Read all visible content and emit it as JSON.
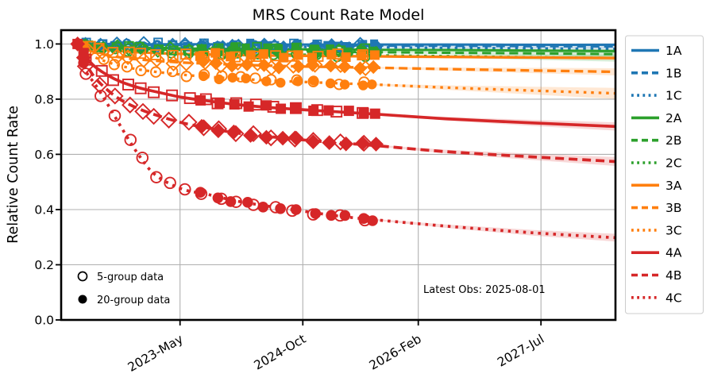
{
  "chart_data": {
    "type": "line",
    "title": "MRS Count Rate Model",
    "xlabel": "",
    "ylabel": "Relative Count Rate",
    "annotation": "Latest Obs: 2025-08-01",
    "latest_obs_date": "2025-08-01",
    "xlim": [
      2021.96,
      2028.36
    ],
    "ylim": [
      0,
      1.05
    ],
    "yticks": [
      "0.0",
      "0.2",
      "0.4",
      "0.6",
      "0.8",
      "1.0"
    ],
    "ytick_values": [
      0.0,
      0.2,
      0.4,
      0.6,
      0.8,
      1.0
    ],
    "xticks": [
      {
        "t": 2023.333,
        "label": "2023-May"
      },
      {
        "t": 2024.75,
        "label": "2024-Oct"
      },
      {
        "t": 2026.083,
        "label": "2026-Feb"
      },
      {
        "t": 2027.5,
        "label": "2027-Jul"
      }
    ],
    "grid": true,
    "grid_color": "#b0b0b0",
    "legend_position": "right",
    "marker_legend": [
      {
        "label": "5-group data",
        "filled": false
      },
      {
        "label": "20-group data",
        "filled": true
      }
    ],
    "t_points": [
      2022.15,
      2022.25,
      2022.35,
      2022.5,
      2022.65,
      2022.85,
      2023.05,
      2023.35,
      2023.65,
      2024.0,
      2024.4,
      2024.8,
      2025.2,
      2025.58,
      2026.4,
      2027.4,
      2028.36
    ],
    "data_end_index": 13,
    "latest_obs_t": 2025.58,
    "series": [
      {
        "name": "1A",
        "color": "#1f77b4",
        "dash": "solid",
        "marker": "square",
        "band": 0.004,
        "values": [
          1.0,
          1.0,
          1.0,
          1.0,
          0.999,
          0.999,
          0.999,
          0.999,
          0.999,
          0.998,
          0.998,
          0.998,
          0.998,
          0.998,
          0.998,
          0.997,
          0.997
        ]
      },
      {
        "name": "1B",
        "color": "#1f77b4",
        "dash": "dashed",
        "marker": "diamond",
        "band": 0.005,
        "values": [
          1.0,
          0.999,
          0.999,
          0.998,
          0.998,
          0.997,
          0.997,
          0.996,
          0.996,
          0.995,
          0.995,
          0.994,
          0.994,
          0.994,
          0.993,
          0.992,
          0.991
        ]
      },
      {
        "name": "1C",
        "color": "#1f77b4",
        "dash": "dotted",
        "marker": "circle",
        "band": 0.006,
        "values": [
          1.0,
          0.998,
          0.997,
          0.996,
          0.995,
          0.994,
          0.993,
          0.992,
          0.991,
          0.99,
          0.989,
          0.989,
          0.988,
          0.988,
          0.986,
          0.984,
          0.982
        ]
      },
      {
        "name": "2A",
        "color": "#2ca02c",
        "dash": "solid",
        "marker": "square",
        "band": 0.008,
        "values": [
          1.0,
          0.996,
          0.993,
          0.991,
          0.989,
          0.987,
          0.986,
          0.984,
          0.983,
          0.982,
          0.981,
          0.98,
          0.98,
          0.979,
          0.978,
          0.976,
          0.974
        ]
      },
      {
        "name": "2B",
        "color": "#2ca02c",
        "dash": "dashed",
        "marker": "diamond",
        "band": 0.011,
        "values": [
          1.0,
          0.994,
          0.99,
          0.987,
          0.984,
          0.982,
          0.98,
          0.978,
          0.976,
          0.974,
          0.973,
          0.972,
          0.971,
          0.97,
          0.968,
          0.966,
          0.963
        ]
      },
      {
        "name": "2C",
        "color": "#2ca02c",
        "dash": "dotted",
        "marker": "circle",
        "band": 0.013,
        "values": [
          1.0,
          0.992,
          0.987,
          0.982,
          0.978,
          0.974,
          0.972,
          0.969,
          0.966,
          0.964,
          0.962,
          0.961,
          0.96,
          0.959,
          0.956,
          0.952,
          0.949
        ]
      },
      {
        "name": "3A",
        "color": "#ff7f0e",
        "dash": "solid",
        "marker": "square",
        "band": 0.007,
        "values": [
          1.0,
          0.99,
          0.984,
          0.978,
          0.974,
          0.97,
          0.967,
          0.964,
          0.962,
          0.96,
          0.958,
          0.957,
          0.956,
          0.955,
          0.953,
          0.951,
          0.949
        ]
      },
      {
        "name": "3B",
        "color": "#ff7f0e",
        "dash": "dashed",
        "marker": "diamond",
        "band": 0.013,
        "values": [
          1.0,
          0.982,
          0.97,
          0.959,
          0.951,
          0.944,
          0.939,
          0.933,
          0.929,
          0.925,
          0.921,
          0.918,
          0.916,
          0.914,
          0.909,
          0.904,
          0.899
        ]
      },
      {
        "name": "3C",
        "color": "#ff7f0e",
        "dash": "dotted",
        "marker": "circle",
        "band": 0.02,
        "values": [
          1.0,
          0.972,
          0.952,
          0.934,
          0.92,
          0.908,
          0.899,
          0.889,
          0.881,
          0.874,
          0.867,
          0.862,
          0.857,
          0.853,
          0.842,
          0.831,
          0.821
        ]
      },
      {
        "name": "4A",
        "color": "#d62728",
        "dash": "solid",
        "marker": "square",
        "band": 0.015,
        "values": [
          1.0,
          0.952,
          0.918,
          0.886,
          0.863,
          0.842,
          0.827,
          0.807,
          0.794,
          0.78,
          0.769,
          0.761,
          0.753,
          0.746,
          0.729,
          0.714,
          0.701
        ]
      },
      {
        "name": "4B",
        "color": "#d62728",
        "dash": "dashed",
        "marker": "diamond",
        "band": 0.016,
        "values": [
          1.0,
          0.928,
          0.878,
          0.832,
          0.797,
          0.766,
          0.743,
          0.715,
          0.696,
          0.677,
          0.663,
          0.651,
          0.641,
          0.632,
          0.61,
          0.591,
          0.574
        ]
      },
      {
        "name": "4C",
        "color": "#d62728",
        "dash": "dotted",
        "marker": "circle",
        "band": 0.014,
        "values": [
          1.0,
          0.9,
          0.855,
          0.78,
          0.7,
          0.6,
          0.525,
          0.475,
          0.455,
          0.43,
          0.41,
          0.392,
          0.375,
          0.363,
          0.34,
          0.316,
          0.298
        ]
      }
    ]
  }
}
